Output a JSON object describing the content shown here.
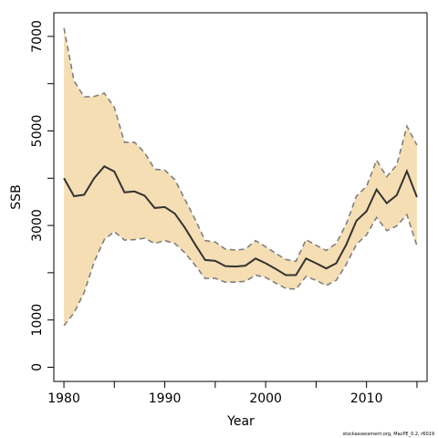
{
  "chart_data": {
    "type": "line",
    "title": "",
    "xlabel": "Year",
    "ylabel": "SSB",
    "xlim": [
      1979,
      2016
    ],
    "ylim": [
      -300,
      7500
    ],
    "x_ticks": [
      1980,
      1990,
      2000,
      2010
    ],
    "y_ticks": [
      0,
      1000,
      3000,
      5000,
      7000
    ],
    "grid": false,
    "legend": "none",
    "colors": {
      "band": "#F5DEB3",
      "bounds": "#7f7f7f",
      "estimate": "#333333"
    },
    "x": [
      1980,
      1981,
      1982,
      1983,
      1984,
      1985,
      1986,
      1987,
      1988,
      1989,
      1990,
      1991,
      1992,
      1993,
      1994,
      1995,
      1996,
      1997,
      1998,
      1999,
      2000,
      2001,
      2002,
      2003,
      2004,
      2005,
      2006,
      2007,
      2008,
      2009,
      2010,
      2011,
      2012,
      2013,
      2014,
      2015
    ],
    "series": [
      {
        "role": "estimate",
        "values": [
          4000,
          3620,
          3650,
          4000,
          4250,
          4140,
          3700,
          3720,
          3630,
          3370,
          3390,
          3250,
          2950,
          2600,
          2270,
          2250,
          2140,
          2130,
          2150,
          2300,
          2200,
          2080,
          1950,
          1950,
          2300,
          2200,
          2090,
          2200,
          2600,
          3100,
          3300,
          3760,
          3470,
          3640,
          4150,
          3600
        ]
      },
      {
        "role": "upper",
        "values": [
          7180,
          6060,
          5720,
          5730,
          5800,
          5500,
          4760,
          4760,
          4540,
          4190,
          4170,
          3970,
          3550,
          3130,
          2680,
          2650,
          2500,
          2480,
          2500,
          2680,
          2550,
          2410,
          2280,
          2240,
          2700,
          2580,
          2470,
          2620,
          3040,
          3620,
          3830,
          4380,
          4030,
          4280,
          5100,
          4700
        ]
      },
      {
        "role": "lower",
        "values": [
          880,
          1150,
          1580,
          2230,
          2700,
          2870,
          2690,
          2700,
          2730,
          2620,
          2680,
          2620,
          2420,
          2160,
          1880,
          1880,
          1800,
          1800,
          1820,
          1950,
          1900,
          1780,
          1670,
          1650,
          1920,
          1840,
          1730,
          1840,
          2180,
          2600,
          2800,
          3170,
          2890,
          2990,
          3230,
          2570
        ]
      }
    ]
  },
  "footer": {
    "credit": "stockassessment.org, MacPE_0.2, r6019"
  }
}
